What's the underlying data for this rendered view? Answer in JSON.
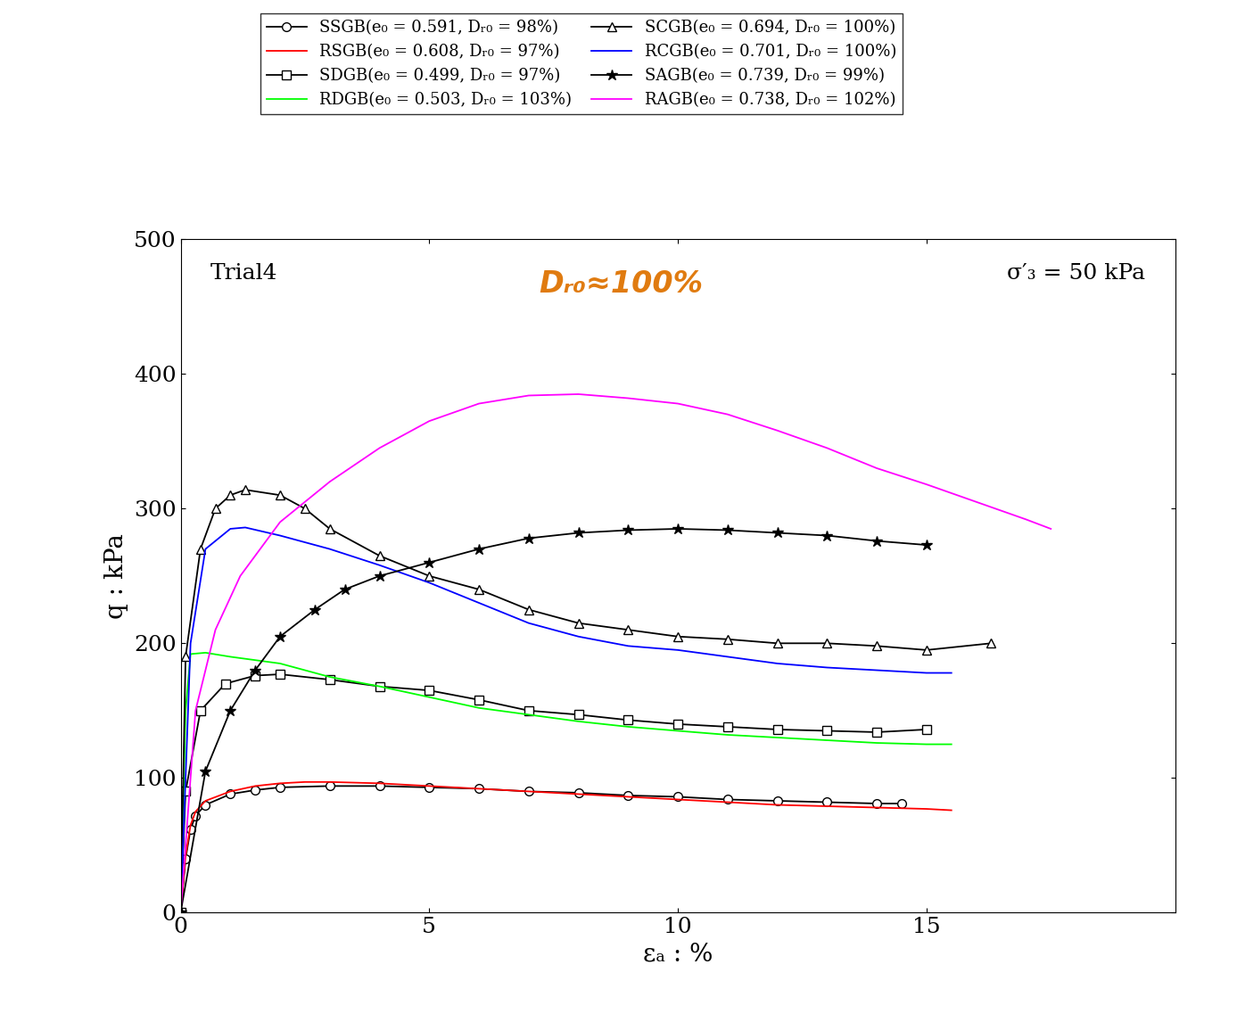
{
  "chart_data": {
    "type": "line",
    "x_label": "εₐ : %",
    "y_label": "q : kPa",
    "annotations": [
      "Trial4",
      "σ′₃ = 50 kPa",
      "Dᵣ₀≈100%"
    ],
    "xlim": [
      0,
      20
    ],
    "xticks": [
      0,
      5,
      10,
      15
    ],
    "ylim": [
      0,
      500
    ],
    "yticks": [
      0,
      100,
      200,
      300,
      400,
      500
    ],
    "grid": false,
    "legend": "upper center",
    "series": [
      {
        "name": "SSGB(e₀ = 0.591, Dᵣ₀ = 98%)",
        "color": "#000000",
        "marker": "circle",
        "line_style": "solid",
        "x": [
          0,
          0.1,
          0.2,
          0.3,
          0.5,
          1,
          1.5,
          2,
          3,
          4,
          5,
          6,
          7,
          8,
          9,
          10,
          11,
          12,
          13,
          14,
          14.5
        ],
        "values": [
          0,
          40,
          62,
          72,
          80,
          88,
          91,
          93,
          94,
          94,
          93,
          92,
          90,
          89,
          87,
          86,
          84,
          83,
          82,
          81,
          81
        ]
      },
      {
        "name": "RSGB(e₀ = 0.608, Dᵣ₀ = 97%)",
        "color": "#ff0000",
        "marker": "none",
        "line_style": "solid",
        "x": [
          0,
          0.1,
          0.2,
          0.3,
          0.5,
          1,
          1.5,
          2,
          2.5,
          3,
          4,
          5,
          6,
          7,
          8,
          9,
          10,
          11,
          12,
          13,
          14,
          15,
          15.5
        ],
        "values": [
          0,
          42,
          65,
          75,
          83,
          90,
          94,
          96,
          97,
          97,
          96,
          94,
          92,
          90,
          88,
          86,
          84,
          82,
          80,
          79,
          78,
          77,
          76
        ]
      },
      {
        "name": "SDGB(e₀ = 0.499, Dᵣ₀ = 97%)",
        "color": "#000000",
        "marker": "square",
        "line_style": "solid",
        "x": [
          0,
          0.1,
          0.4,
          0.9,
          1.5,
          2,
          3,
          4,
          5,
          6,
          7,
          8,
          9,
          10,
          11,
          12,
          13,
          14,
          15
        ],
        "values": [
          0,
          90,
          150,
          170,
          176,
          177,
          173,
          168,
          165,
          158,
          150,
          147,
          143,
          140,
          138,
          136,
          135,
          134,
          136
        ]
      },
      {
        "name": "RDGB(e₀ = 0.503, Dᵣ₀ = 103%)",
        "color": "#00ff00",
        "marker": "none",
        "line_style": "solid",
        "x": [
          0,
          0.1,
          0.2,
          0.5,
          1,
          2,
          3,
          4,
          5,
          6,
          7,
          8,
          9,
          10,
          11,
          12,
          13,
          14,
          15,
          15.5
        ],
        "values": [
          0,
          150,
          192,
          193,
          190,
          185,
          175,
          168,
          160,
          152,
          147,
          142,
          138,
          135,
          132,
          130,
          128,
          126,
          125,
          125
        ]
      },
      {
        "name": "SCGB(e₀ = 0.694, Dᵣ₀ = 100%)",
        "color": "#000000",
        "marker": "triangle",
        "line_style": "solid",
        "x": [
          0,
          0.1,
          0.4,
          0.7,
          1,
          1.3,
          2,
          2.5,
          3,
          4,
          5,
          6,
          7,
          8,
          9,
          10,
          11,
          12,
          13,
          14,
          15,
          16.3
        ],
        "values": [
          0,
          190,
          270,
          300,
          310,
          314,
          310,
          300,
          285,
          265,
          250,
          240,
          225,
          215,
          210,
          205,
          203,
          200,
          200,
          198,
          195,
          200
        ]
      },
      {
        "name": "RCGB(e₀ = 0.701, Dᵣ₀ = 100%)",
        "color": "#0000ff",
        "marker": "none",
        "line_style": "solid",
        "x": [
          0,
          0.2,
          0.5,
          1,
          1.3,
          2,
          3,
          4,
          5,
          6,
          7,
          8,
          9,
          10,
          11,
          12,
          13,
          14,
          15,
          15.5
        ],
        "values": [
          0,
          200,
          270,
          285,
          286,
          280,
          270,
          258,
          245,
          230,
          215,
          205,
          198,
          195,
          190,
          185,
          182,
          180,
          178,
          178
        ]
      },
      {
        "name": "SAGB(e₀ = 0.739, Dᵣ₀ = 99%)",
        "color": "#000000",
        "marker": "star",
        "line_style": "solid",
        "x": [
          0,
          0.5,
          1,
          1.5,
          2,
          2.7,
          3.3,
          4,
          5,
          6,
          7,
          8,
          9,
          10,
          11,
          12,
          13,
          14,
          15
        ],
        "values": [
          0,
          105,
          150,
          180,
          205,
          225,
          240,
          250,
          260,
          270,
          278,
          282,
          284,
          285,
          284,
          282,
          280,
          276,
          273
        ]
      },
      {
        "name": "RAGB(e₀ = 0.738, Dᵣ₀ = 102%)",
        "color": "#ff00ff",
        "marker": "none",
        "line_style": "solid",
        "x": [
          0,
          0.3,
          0.7,
          1.2,
          2,
          3,
          4,
          5,
          6,
          7,
          8,
          9,
          10,
          11,
          12,
          13,
          14,
          15,
          16,
          17,
          17.5
        ],
        "values": [
          0,
          150,
          210,
          250,
          290,
          320,
          345,
          365,
          378,
          384,
          385,
          382,
          378,
          370,
          358,
          345,
          330,
          318,
          305,
          292,
          285
        ]
      }
    ]
  }
}
